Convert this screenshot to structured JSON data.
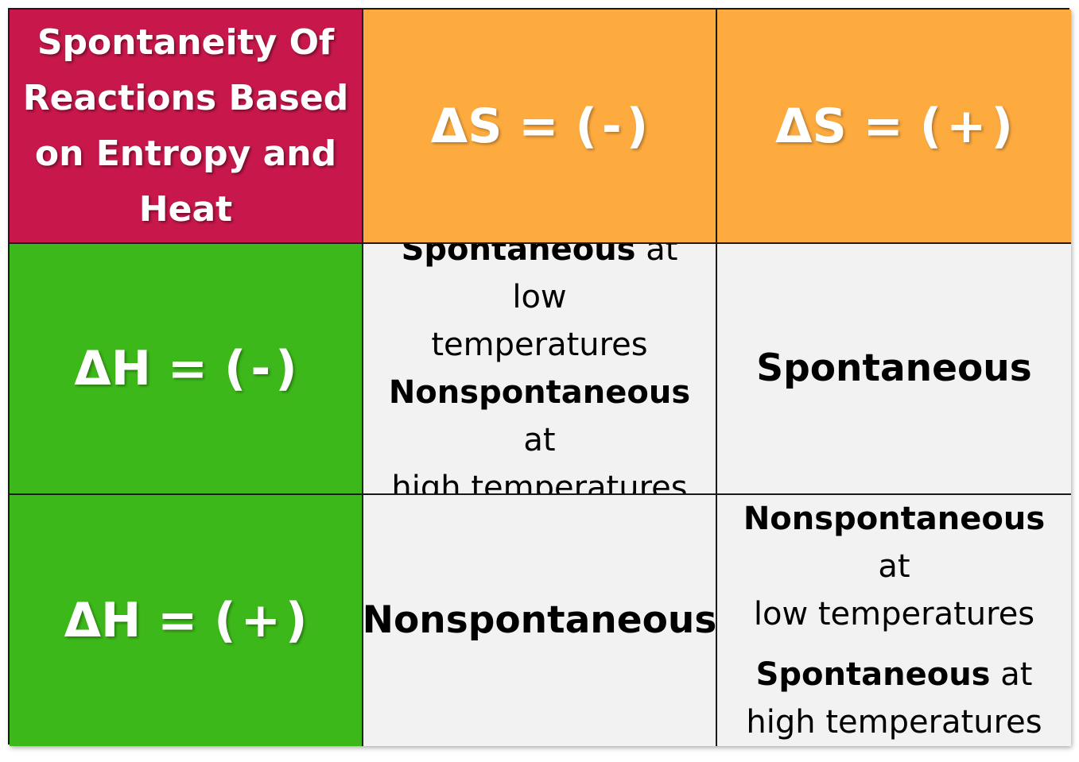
{
  "table": {
    "corner": {
      "lines": [
        "Spontaneity Of",
        "Reactions Based",
        "on Entropy and",
        "Heat"
      ]
    },
    "col_headers": [
      {
        "prefix": "ΔS = (",
        "sign": "-",
        "suffix": ")"
      },
      {
        "prefix": "ΔS = (",
        "sign": "+",
        "suffix": ")"
      }
    ],
    "row_headers": [
      {
        "prefix": "ΔH = (",
        "sign": "-",
        "suffix": ")"
      },
      {
        "prefix": "ΔH = (",
        "sign": "+",
        "suffix": ")"
      }
    ],
    "cells": {
      "r1c1": {
        "a_bold": "Spontaneous",
        "a_rest": " at low",
        "a_line2": "temperatures",
        "b_bold": "Nonspontaneous",
        "b_rest": " at",
        "b_line2": "high temperatures"
      },
      "r1c2": {
        "text": "Spontaneous"
      },
      "r2c1": {
        "text": "Nonspontaneous"
      },
      "r2c2": {
        "a_bold": "Nonspontaneous",
        "a_rest": " at",
        "a_line2": "low temperatures",
        "b_bold": "Spontaneous",
        "b_rest": " at",
        "b_line2": "high temperatures"
      }
    },
    "colors": {
      "corner": "#c8184b",
      "header": "#fdaa3f",
      "row_header": "#3db81a",
      "body": "#f2f2f2"
    }
  }
}
